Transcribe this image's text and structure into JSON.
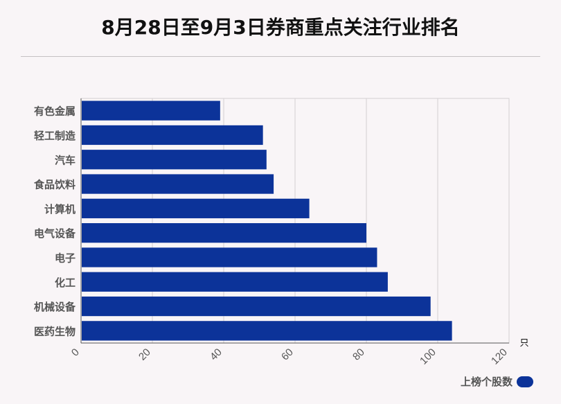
{
  "title": "8月28日至9月3日券商重点关注行业排名",
  "colors": {
    "bar": "#0c3399",
    "grid": "#d4d0d2",
    "axis": "#555555"
  },
  "chart_data": {
    "type": "bar",
    "orientation": "horizontal",
    "categories": [
      "有色金属",
      "轻工制造",
      "汽车",
      "食品饮料",
      "计算机",
      "电气设备",
      "电子",
      "化工",
      "机械设备",
      "医药生物"
    ],
    "series": [
      {
        "name": "上榜个股数",
        "values": [
          39,
          51,
          52,
          54,
          64,
          80,
          83,
          86,
          98,
          104
        ]
      }
    ],
    "xlim": [
      0,
      120
    ],
    "xticks": [
      "0",
      "20",
      "40",
      "60",
      "80",
      "100",
      "120"
    ],
    "x_unit": "只",
    "grid": true,
    "legend": "bottom-right"
  }
}
